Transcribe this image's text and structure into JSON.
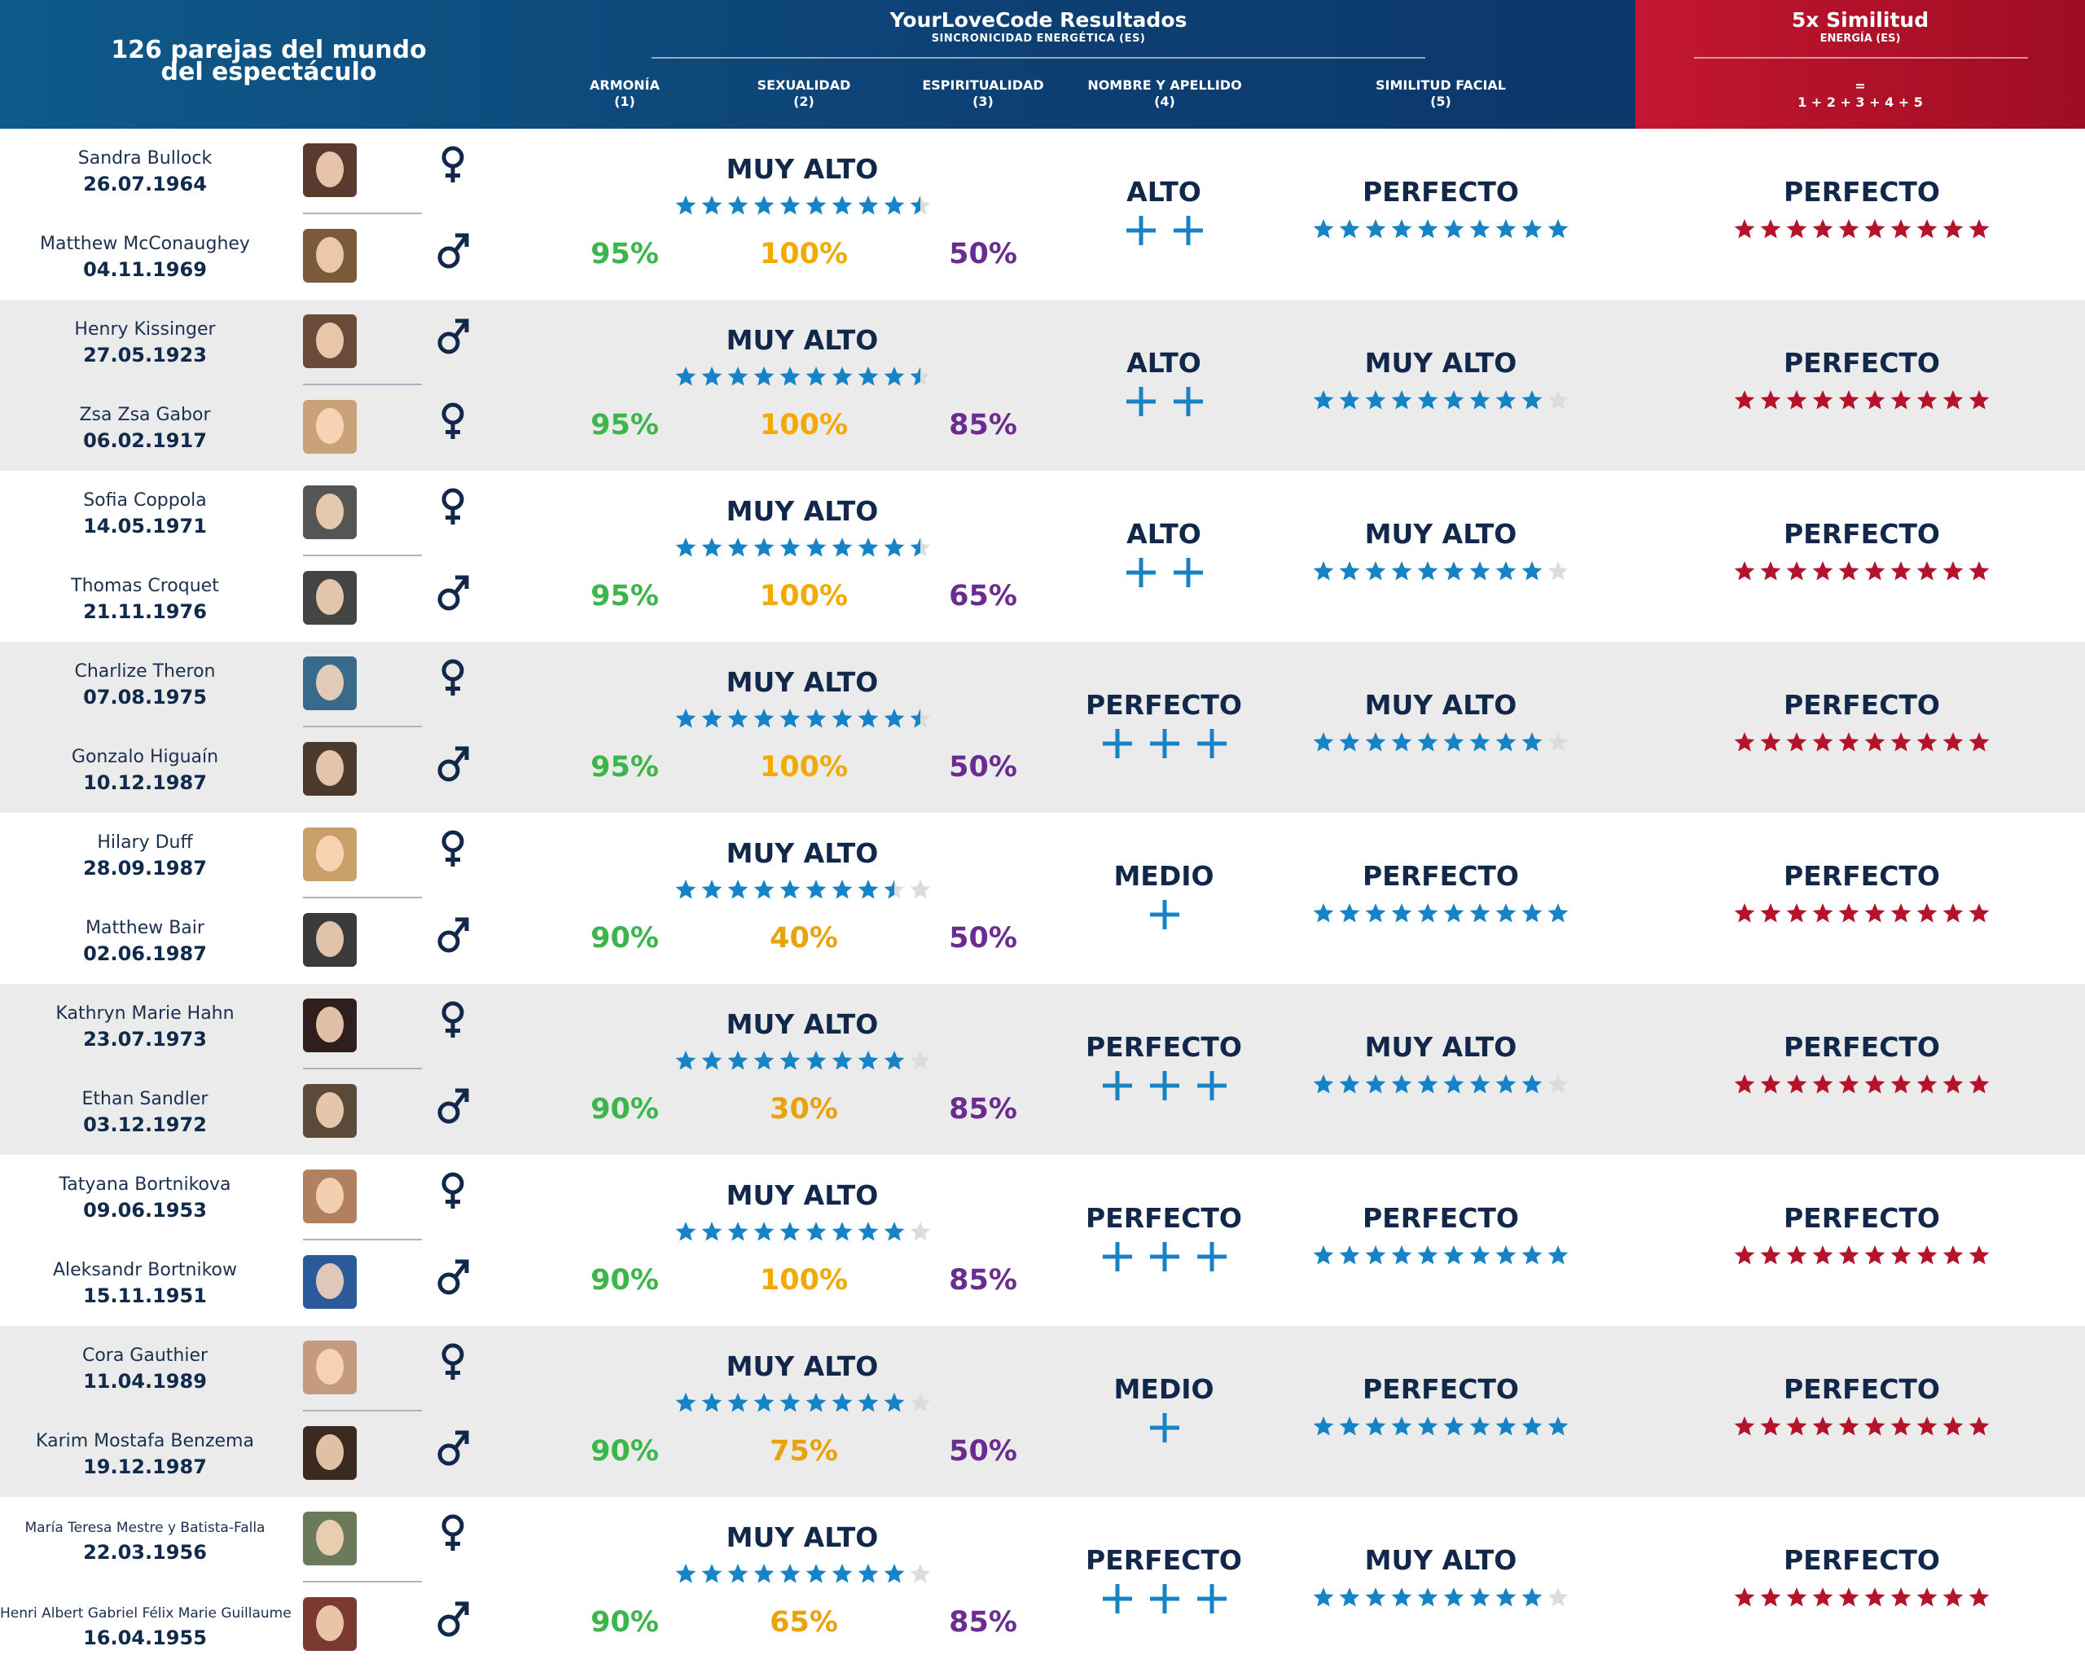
{
  "header": {
    "left_title_line1": "126 parejas del mundo",
    "left_title_line2": "del espectáculo",
    "main_title": "YourLoveCode Resultados",
    "main_subtitle": "SINCRONICIDAD ENERGÉTICA (ES)",
    "columns": [
      {
        "label": "ARMONÍA",
        "num": "(1)"
      },
      {
        "label": "SEXUALIDAD",
        "num": "(2)"
      },
      {
        "label": "ESPIRITUALIDAD",
        "num": "(3)"
      },
      {
        "label": "NOMBRE Y APELLIDO",
        "num": "(4)"
      },
      {
        "label": "SIMILITUD FACIAL",
        "num": "(5)"
      }
    ],
    "red_title": "5x Similitud",
    "red_subtitle": "ENERGÍA (ES)",
    "formula_eq": "=",
    "formula": "1 + 2 + 3 + 4 + 5"
  },
  "colors": {
    "header_blue": "#0d3f73",
    "header_red": "#b0122a",
    "green": "#3cb54a",
    "yellow": "#f2a900",
    "purple": "#6a2c91",
    "navy": "#12284a",
    "star_blue": "#1583c6",
    "star_red": "#b3142c",
    "star_empty": "#dcdcdc"
  },
  "icons": {
    "female": "female-symbol-icon",
    "male": "male-symbol-icon"
  },
  "pairs": [
    {
      "female": {
        "name": "Sandra Bullock",
        "date": "26.07.1964",
        "gender": "female",
        "photo_color": "#5a3a2e"
      },
      "male": {
        "name": "Matthew McConaughey",
        "date": "04.11.1969",
        "gender": "male",
        "photo_color": "#7a5a3a"
      },
      "first_gender": "female",
      "armonia": "95%",
      "sexualidad": "100%",
      "espiritualidad": "50%",
      "sex_label": "MUY ALTO",
      "sex_stars": 9.5,
      "name_label": "ALTO",
      "name_plus": 2,
      "face_label": "PERFECTO",
      "face_stars": 10,
      "total_label": "PERFECTO",
      "total_stars": 10
    },
    {
      "female": {
        "name": "Zsa Zsa Gabor",
        "date": "06.02.1917",
        "gender": "female",
        "photo_color": "#c9a27a"
      },
      "male": {
        "name": "Henry Kissinger",
        "date": "27.05.1923",
        "gender": "male",
        "photo_color": "#6b4a3a"
      },
      "first_gender": "male",
      "armonia": "95%",
      "sexualidad": "100%",
      "espiritualidad": "85%",
      "sex_label": "MUY ALTO",
      "sex_stars": 9.5,
      "name_label": "ALTO",
      "name_plus": 2,
      "face_label": "MUY ALTO",
      "face_stars": 9,
      "total_label": "PERFECTO",
      "total_stars": 10
    },
    {
      "female": {
        "name": "Sofia Coppola",
        "date": "14.05.1971",
        "gender": "female",
        "photo_color": "#555555"
      },
      "male": {
        "name": "Thomas Croquet",
        "date": "21.11.1976",
        "gender": "male",
        "photo_color": "#444444"
      },
      "first_gender": "female",
      "armonia": "95%",
      "sexualidad": "100%",
      "espiritualidad": "65%",
      "sex_label": "MUY ALTO",
      "sex_stars": 9.5,
      "name_label": "ALTO",
      "name_plus": 2,
      "face_label": "MUY ALTO",
      "face_stars": 9,
      "total_label": "PERFECTO",
      "total_stars": 10
    },
    {
      "female": {
        "name": "Charlize Theron",
        "date": "07.08.1975",
        "gender": "female",
        "photo_color": "#3a6a8a"
      },
      "male": {
        "name": "Gonzalo Higuaín",
        "date": "10.12.1987",
        "gender": "male",
        "photo_color": "#4a3a2e"
      },
      "first_gender": "female",
      "armonia": "95%",
      "sexualidad": "100%",
      "espiritualidad": "50%",
      "sex_label": "MUY ALTO",
      "sex_stars": 9.5,
      "name_label": "PERFECTO",
      "name_plus": 3,
      "face_label": "MUY ALTO",
      "face_stars": 9,
      "total_label": "PERFECTO",
      "total_stars": 10
    },
    {
      "female": {
        "name": "Hilary Duff",
        "date": "28.09.1987",
        "gender": "female",
        "photo_color": "#c9a06a"
      },
      "male": {
        "name": "Matthew Bair",
        "date": "02.06.1987",
        "gender": "male",
        "photo_color": "#3a3a3a"
      },
      "first_gender": "female",
      "armonia": "90%",
      "sexualidad": "40%",
      "espiritualidad": "50%",
      "sex_label": "MUY ALTO",
      "sex_stars": 8.5,
      "name_label": "MEDIO",
      "name_plus": 1,
      "face_label": "PERFECTO",
      "face_stars": 10,
      "total_label": "PERFECTO",
      "total_stars": 10
    },
    {
      "female": {
        "name": "Kathryn Marie Hahn",
        "date": "23.07.1973",
        "gender": "female",
        "photo_color": "#2e1e1e"
      },
      "male": {
        "name": "Ethan Sandler",
        "date": "03.12.1972",
        "gender": "male",
        "photo_color": "#5a4a3a"
      },
      "first_gender": "female",
      "armonia": "90%",
      "sexualidad": "30%",
      "espiritualidad": "85%",
      "sex_label": "MUY ALTO",
      "sex_stars": 9,
      "name_label": "PERFECTO",
      "name_plus": 3,
      "face_label": "MUY ALTO",
      "face_stars": 9,
      "total_label": "PERFECTO",
      "total_stars": 10
    },
    {
      "female": {
        "name": "Tatyana Bortnikova",
        "date": "09.06.1953",
        "gender": "female",
        "photo_color": "#b08060"
      },
      "male": {
        "name": "Aleksandr Bortnikow",
        "date": "15.11.1951",
        "gender": "male",
        "photo_color": "#2a5a9a"
      },
      "first_gender": "female",
      "armonia": "90%",
      "sexualidad": "100%",
      "espiritualidad": "85%",
      "sex_label": "MUY ALTO",
      "sex_stars": 9,
      "name_label": "PERFECTO",
      "name_plus": 3,
      "face_label": "PERFECTO",
      "face_stars": 10,
      "total_label": "PERFECTO",
      "total_stars": 10
    },
    {
      "female": {
        "name": "Cora Gauthier",
        "date": "11.04.1989",
        "gender": "female",
        "photo_color": "#c49a80"
      },
      "male": {
        "name": "Karim Mostafa Benzema",
        "date": "19.12.1987",
        "gender": "male",
        "photo_color": "#3a2a20"
      },
      "first_gender": "female",
      "armonia": "90%",
      "sexualidad": "75%",
      "espiritualidad": "50%",
      "sex_label": "MUY ALTO",
      "sex_stars": 9,
      "name_label": "MEDIO",
      "name_plus": 1,
      "face_label": "PERFECTO",
      "face_stars": 10,
      "total_label": "PERFECTO",
      "total_stars": 10
    },
    {
      "female": {
        "name": "María Teresa Mestre y Batista-Falla",
        "date": "22.03.1956",
        "gender": "female",
        "photo_color": "#6a7a5a"
      },
      "male": {
        "name": "Henri Albert Gabriel Félix Marie Guillaume",
        "date": "16.04.1955",
        "gender": "male",
        "photo_color": "#7a3a30"
      },
      "first_gender": "female",
      "armonia": "90%",
      "sexualidad": "65%",
      "espiritualidad": "85%",
      "sex_label": "MUY ALTO",
      "sex_stars": 9,
      "name_label": "PERFECTO",
      "name_plus": 3,
      "face_label": "MUY ALTO",
      "face_stars": 9,
      "total_label": "PERFECTO",
      "total_stars": 10
    }
  ]
}
